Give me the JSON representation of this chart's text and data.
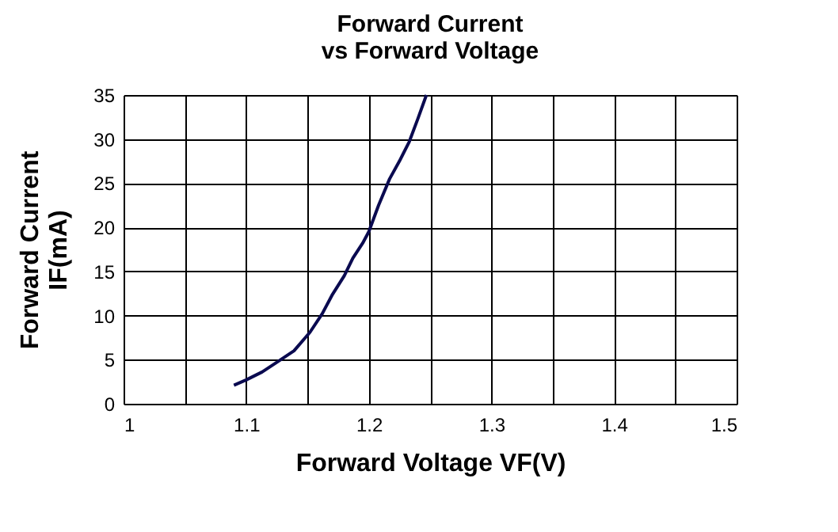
{
  "chart_data": {
    "type": "line",
    "title": [
      "Forward Current",
      "vs Forward Voltage"
    ],
    "xlabel": "Forward Voltage VF(V)",
    "ylabel": [
      "Forward Current",
      "IF(mA)"
    ],
    "series": [
      {
        "color": "#0a0a50",
        "x": [
          1.09,
          1.1,
          1.113,
          1.125,
          1.139,
          1.152,
          1.162,
          1.17,
          1.18,
          1.187,
          1.195,
          1.2,
          1.208,
          1.217,
          1.225,
          1.233,
          1.24,
          1.247
        ],
        "values": [
          2.1,
          2.7,
          3.6,
          4.7,
          6.0,
          8.1,
          10.2,
          12.3,
          14.5,
          16.5,
          18.2,
          19.5,
          22.5,
          25.5,
          27.5,
          29.7,
          32.3,
          35
        ]
      }
    ],
    "xlim": [
      1,
      1.5
    ],
    "xticks": [
      1,
      {
        "value": 1.05,
        "label": null
      },
      1.1,
      {
        "value": 1.15,
        "label": null
      },
      1.2,
      {
        "value": 1.25,
        "label": null
      },
      1.3,
      {
        "value": 1.35,
        "label": null
      },
      1.4,
      {
        "value": 1.45,
        "label": null
      },
      1.5
    ],
    "ylim": [
      0,
      35
    ],
    "yticks": [
      0,
      5,
      10,
      15,
      20,
      25,
      30,
      35
    ],
    "grid": true,
    "marker": "none",
    "line_style": "solid"
  }
}
